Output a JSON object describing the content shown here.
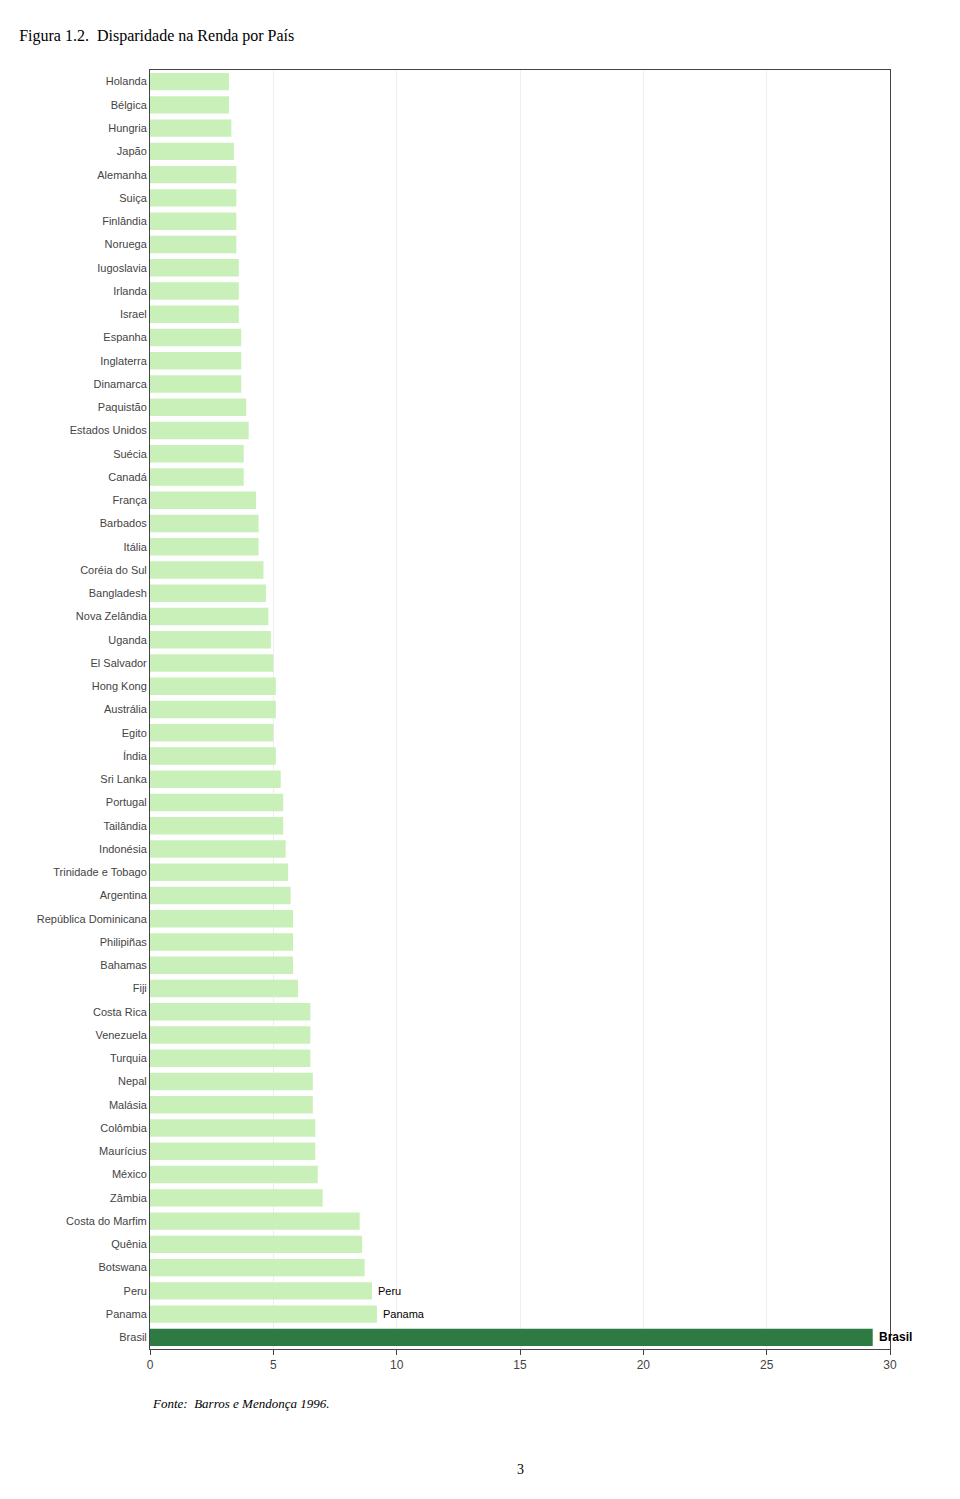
{
  "chart_data": {
    "type": "bar",
    "orientation": "horizontal",
    "title": "Figura 1.2.  Disparidade na Renda por País",
    "categories": [
      "Holanda",
      "Bélgica",
      "Hungria",
      "Japão",
      "Alemanha",
      "Suiça",
      "Finlândia",
      "Noruega",
      "Iugoslavia",
      "Irlanda",
      "Israel",
      "Espanha",
      "Inglaterra",
      "Dinamarca",
      "Paquistão",
      "Estados Unidos",
      "Suécia",
      "Canadá",
      "França",
      "Barbados",
      "Itália",
      "Coréia do Sul",
      "Bangladesh",
      "Nova Zelândia",
      "Uganda",
      "El Salvador",
      "Hong Kong",
      "Austrália",
      "Egito",
      "Índia",
      "Sri Lanka",
      "Portugal",
      "Tailândia",
      "Indonésia",
      "Trinidade e Tobago",
      "Argentina",
      "República Dominicana",
      "Philipiñas",
      "Bahamas",
      "Fiji",
      "Costa Rica",
      "Venezuela",
      "Turquia",
      "Nepal",
      "Malásia",
      "Colômbia",
      "Maurícius",
      "México",
      "Zâmbia",
      "Costa do Marfim",
      "Quênia",
      "Botswana",
      "Peru",
      "Panama",
      "Brasil"
    ],
    "values": [
      3.2,
      3.2,
      3.3,
      3.4,
      3.5,
      3.5,
      3.5,
      3.5,
      3.6,
      3.6,
      3.6,
      3.7,
      3.7,
      3.7,
      3.9,
      4.0,
      3.8,
      3.8,
      4.3,
      4.4,
      4.4,
      4.6,
      4.7,
      4.8,
      4.9,
      5.0,
      5.1,
      5.1,
      5.0,
      5.1,
      5.3,
      5.4,
      5.4,
      5.5,
      5.6,
      5.7,
      5.8,
      5.8,
      5.8,
      6.0,
      6.5,
      6.5,
      6.5,
      6.6,
      6.6,
      6.7,
      6.7,
      6.8,
      7.0,
      8.5,
      8.6,
      8.7,
      9.0,
      9.2,
      29.3
    ],
    "colors": [
      "#c8f0b8",
      "#c8f0b8",
      "#c8f0b8",
      "#c8f0b8",
      "#c8f0b8",
      "#c8f0b8",
      "#c8f0b8",
      "#c8f0b8",
      "#c8f0b8",
      "#c8f0b8",
      "#c8f0b8",
      "#c8f0b8",
      "#c8f0b8",
      "#c8f0b8",
      "#c8f0b8",
      "#c8f0b8",
      "#c8f0b8",
      "#c8f0b8",
      "#c8f0b8",
      "#c8f0b8",
      "#c8f0b8",
      "#c8f0b8",
      "#c8f0b8",
      "#c8f0b8",
      "#c8f0b8",
      "#c8f0b8",
      "#c8f0b8",
      "#c8f0b8",
      "#c8f0b8",
      "#c8f0b8",
      "#c8f0b8",
      "#c8f0b8",
      "#c8f0b8",
      "#c8f0b8",
      "#c8f0b8",
      "#c8f0b8",
      "#c8f0b8",
      "#c8f0b8",
      "#c8f0b8",
      "#c8f0b8",
      "#c8f0b8",
      "#c8f0b8",
      "#c8f0b8",
      "#c8f0b8",
      "#c8f0b8",
      "#c8f0b8",
      "#c8f0b8",
      "#c8f0b8",
      "#c8f0b8",
      "#c8f0b8",
      "#c8f0b8",
      "#c8f0b8",
      "#c8f0b8",
      "#c8f0b8",
      "#2d7a42"
    ],
    "xlim": [
      0,
      30
    ],
    "xticks": [
      0,
      5,
      10,
      15,
      20,
      25,
      30
    ],
    "grid": true,
    "annotations": [
      {
        "text": "Brasil",
        "category": "Brasil"
      },
      {
        "text": "Panama",
        "category": "Panama"
      },
      {
        "text": "Peru",
        "category": "Peru"
      },
      {
        "text": "Fonte:  Barros e Mendonça 1996."
      },
      {
        "text": "3"
      }
    ]
  }
}
